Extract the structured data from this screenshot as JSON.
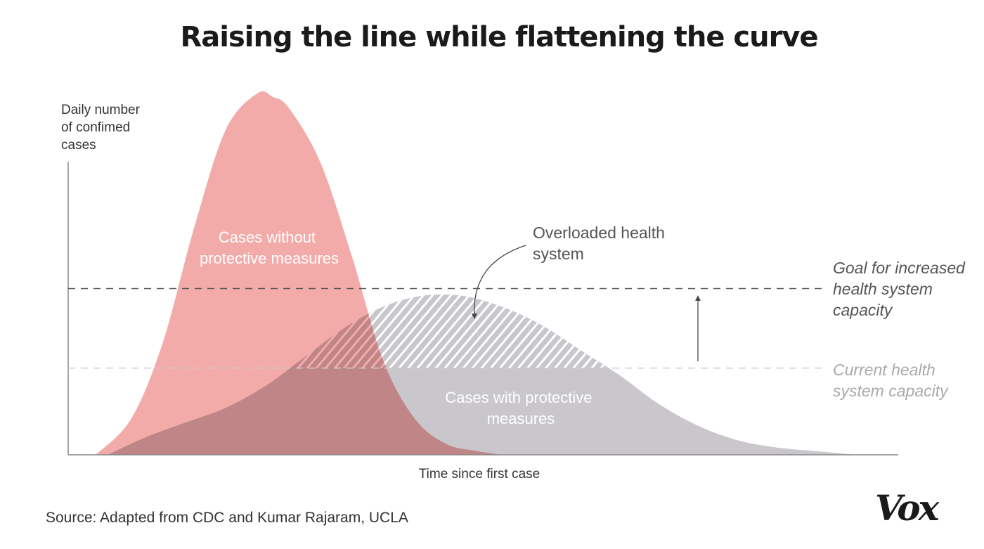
{
  "chart_data": {
    "type": "area",
    "title": "Raising the line while flattening the curve",
    "xlabel": "Time since first case",
    "ylabel": "Daily number of confimed cases",
    "ylabel_lines": [
      "Daily number",
      "of confimed",
      "cases"
    ],
    "xlim": [
      0,
      100
    ],
    "ylim": [
      0,
      100
    ],
    "grid": false,
    "series": [
      {
        "name": "Cases without protective measures",
        "label_lines": [
          "Cases without",
          "protective measures"
        ],
        "color": "#ef8f8e",
        "x": [
          3.5,
          8,
          12,
          16,
          20,
          24,
          26,
          28,
          32,
          36,
          40,
          44,
          48,
          52,
          55
        ],
        "values": [
          0,
          10,
          31,
          63,
          90,
          100,
          99,
          96,
          81,
          55,
          26,
          10,
          3,
          1,
          0
        ]
      },
      {
        "name": "Cases with protective measures",
        "label_lines": [
          "Cases with protective",
          "measures"
        ],
        "color": "#c9c7cb",
        "x": [
          5,
          10,
          15,
          20,
          25,
          30,
          35,
          40,
          45,
          50,
          55,
          60,
          65,
          70,
          75,
          80,
          85,
          90,
          95,
          100
        ],
        "values": [
          0,
          5,
          9,
          13,
          19,
          27,
          35,
          41,
          44,
          44,
          41,
          36,
          29,
          22,
          14,
          8,
          4,
          2,
          1,
          0
        ]
      }
    ],
    "lines": [
      {
        "name": "Goal for increased health system capacity",
        "label_lines": [
          "Goal for increased",
          "health system",
          "capacity"
        ],
        "y": 46,
        "color": "#555555"
      },
      {
        "name": "Current health system capacity",
        "label_lines": [
          "Current health",
          "system capacity"
        ],
        "y": 24,
        "color": "#cccccc"
      }
    ],
    "annotations": [
      {
        "label_lines": [
          "Overloaded health",
          "system"
        ]
      }
    ]
  },
  "source": "Source: Adapted from CDC and Kumar Rajaram, UCLA",
  "logo": "Vox"
}
